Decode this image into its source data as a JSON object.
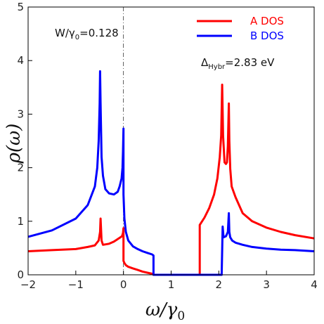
{
  "chart_data": {
    "type": "line",
    "xlabel_main": "ω/γ",
    "xlabel_sub": "0",
    "ylabel": "ρ(ω)",
    "xlim": [
      -2,
      4
    ],
    "ylim": [
      0,
      5
    ],
    "x_ticks": [
      "−2",
      "−1",
      "0",
      "1",
      "2",
      "3",
      "4"
    ],
    "x_tick_values": [
      -2,
      -1,
      0,
      1,
      2,
      3,
      4
    ],
    "y_ticks": [
      "0",
      "1",
      "2",
      "3",
      "4",
      "5"
    ],
    "y_tick_values": [
      0,
      1,
      2,
      3,
      4,
      5
    ],
    "fermi_line_x": 0,
    "grid": false,
    "legend_position": "top-right",
    "annotation_w": {
      "pre": "W/γ",
      "sub": "0",
      "post": "=0.128"
    },
    "annotation_delta": {
      "pre": "Δ",
      "sub": "Hybr",
      "post": "=2.83 eV"
    },
    "series": [
      {
        "name": "A DOS",
        "color": "#ff0000",
        "x": [
          -2.0,
          -1.5,
          -1.0,
          -0.75,
          -0.6,
          -0.52,
          -0.49,
          -0.48,
          -0.46,
          -0.43,
          -0.3,
          -0.2,
          -0.1,
          -0.03,
          -0.01,
          0.0,
          0.0,
          0.02,
          0.05,
          0.1,
          0.2,
          0.3,
          0.4,
          0.5,
          0.6,
          0.63,
          0.63,
          0.65,
          1.0,
          1.3,
          1.6,
          1.6,
          1.6,
          1.7,
          1.8,
          1.9,
          1.97,
          2.02,
          2.05,
          2.07,
          2.09,
          2.12,
          2.15,
          2.17,
          2.19,
          2.21,
          2.22,
          2.24,
          2.27,
          2.35,
          2.5,
          2.7,
          3.0,
          3.3,
          3.6,
          4.0
        ],
        "y": [
          0.44,
          0.46,
          0.48,
          0.52,
          0.55,
          0.64,
          0.8,
          1.05,
          0.64,
          0.56,
          0.58,
          0.62,
          0.68,
          0.72,
          0.78,
          0.87,
          0.26,
          0.22,
          0.18,
          0.15,
          0.12,
          0.09,
          0.06,
          0.04,
          0.02,
          0.01,
          0.0,
          0.0,
          0.0,
          0.0,
          0.0,
          0.93,
          0.93,
          1.07,
          1.25,
          1.5,
          1.8,
          2.2,
          2.6,
          3.55,
          2.6,
          2.1,
          2.07,
          2.1,
          2.4,
          3.2,
          2.5,
          1.98,
          1.65,
          1.45,
          1.15,
          1.0,
          0.88,
          0.8,
          0.74,
          0.68
        ]
      },
      {
        "name": "B DOS",
        "color": "#0000ff",
        "x": [
          -2.0,
          -1.5,
          -1.0,
          -0.75,
          -0.6,
          -0.55,
          -0.52,
          -0.5,
          -0.49,
          -0.48,
          -0.46,
          -0.43,
          -0.38,
          -0.3,
          -0.2,
          -0.12,
          -0.08,
          -0.04,
          -0.02,
          -0.01,
          0.0,
          0.0,
          0.02,
          0.05,
          0.1,
          0.2,
          0.3,
          0.4,
          0.5,
          0.6,
          0.63,
          0.63,
          0.65,
          1.0,
          1.3,
          1.55,
          1.6,
          1.6,
          1.9,
          2.0,
          2.04,
          2.06,
          2.08,
          2.1,
          2.15,
          2.19,
          2.21,
          2.22,
          2.24,
          2.28,
          2.35,
          2.5,
          2.7,
          3.0,
          3.3,
          3.6,
          4.0
        ],
        "y": [
          0.71,
          0.83,
          1.05,
          1.3,
          1.65,
          2.0,
          2.5,
          3.2,
          3.8,
          3.2,
          2.2,
          1.85,
          1.6,
          1.52,
          1.5,
          1.55,
          1.65,
          1.8,
          2.0,
          2.3,
          2.73,
          1.5,
          1.05,
          0.8,
          0.64,
          0.53,
          0.48,
          0.44,
          0.41,
          0.38,
          0.36,
          0.0,
          0.0,
          0.0,
          0.0,
          0.0,
          0.0,
          0.0,
          0.0,
          0.0,
          0.0,
          0.0,
          0.9,
          0.7,
          0.72,
          0.8,
          1.15,
          0.8,
          0.7,
          0.64,
          0.6,
          0.56,
          0.52,
          0.49,
          0.47,
          0.46,
          0.44
        ]
      }
    ]
  }
}
